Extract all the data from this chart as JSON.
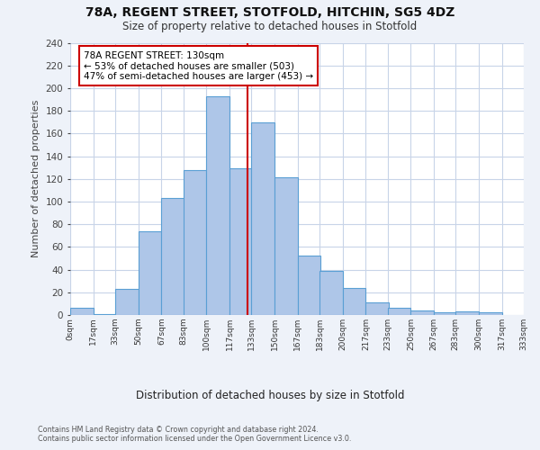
{
  "title1": "78A, REGENT STREET, STOTFOLD, HITCHIN, SG5 4DZ",
  "title2": "Size of property relative to detached houses in Stotfold",
  "xlabel": "Distribution of detached houses by size in Stotfold",
  "ylabel": "Number of detached properties",
  "bar_values": [
    6,
    1,
    23,
    74,
    103,
    128,
    193,
    129,
    170,
    121,
    52,
    39,
    24,
    11,
    6,
    4,
    2,
    3,
    2
  ],
  "bar_left_edges": [
    0,
    17,
    33,
    50,
    67,
    83,
    100,
    117,
    133,
    150,
    167,
    183,
    200,
    217,
    233,
    250,
    267,
    283,
    300
  ],
  "bin_width": 17,
  "x_tick_labels": [
    "0sqm",
    "17sqm",
    "33sqm",
    "50sqm",
    "67sqm",
    "83sqm",
    "100sqm",
    "117sqm",
    "133sqm",
    "150sqm",
    "167sqm",
    "183sqm",
    "200sqm",
    "217sqm",
    "233sqm",
    "250sqm",
    "267sqm",
    "283sqm",
    "300sqm",
    "317sqm",
    "333sqm"
  ],
  "x_tick_positions": [
    0,
    17,
    33,
    50,
    67,
    83,
    100,
    117,
    133,
    150,
    167,
    183,
    200,
    217,
    233,
    250,
    267,
    283,
    300,
    317,
    333
  ],
  "bar_color": "#aec6e8",
  "bar_edge_color": "#5a9fd4",
  "vline_x": 130,
  "vline_color": "#cc0000",
  "annotation_line1": "78A REGENT STREET: 130sqm",
  "annotation_line2": "← 53% of detached houses are smaller (503)",
  "annotation_line3": "47% of semi-detached houses are larger (453) →",
  "annotation_box_color": "#cc0000",
  "annotation_text_color": "#000000",
  "ylim": [
    0,
    240
  ],
  "yticks": [
    0,
    20,
    40,
    60,
    80,
    100,
    120,
    140,
    160,
    180,
    200,
    220,
    240
  ],
  "footnote1": "Contains HM Land Registry data © Crown copyright and database right 2024.",
  "footnote2": "Contains public sector information licensed under the Open Government Licence v3.0.",
  "bg_color": "#eef2f9",
  "plot_bg_color": "#ffffff",
  "grid_color": "#c8d4e8"
}
